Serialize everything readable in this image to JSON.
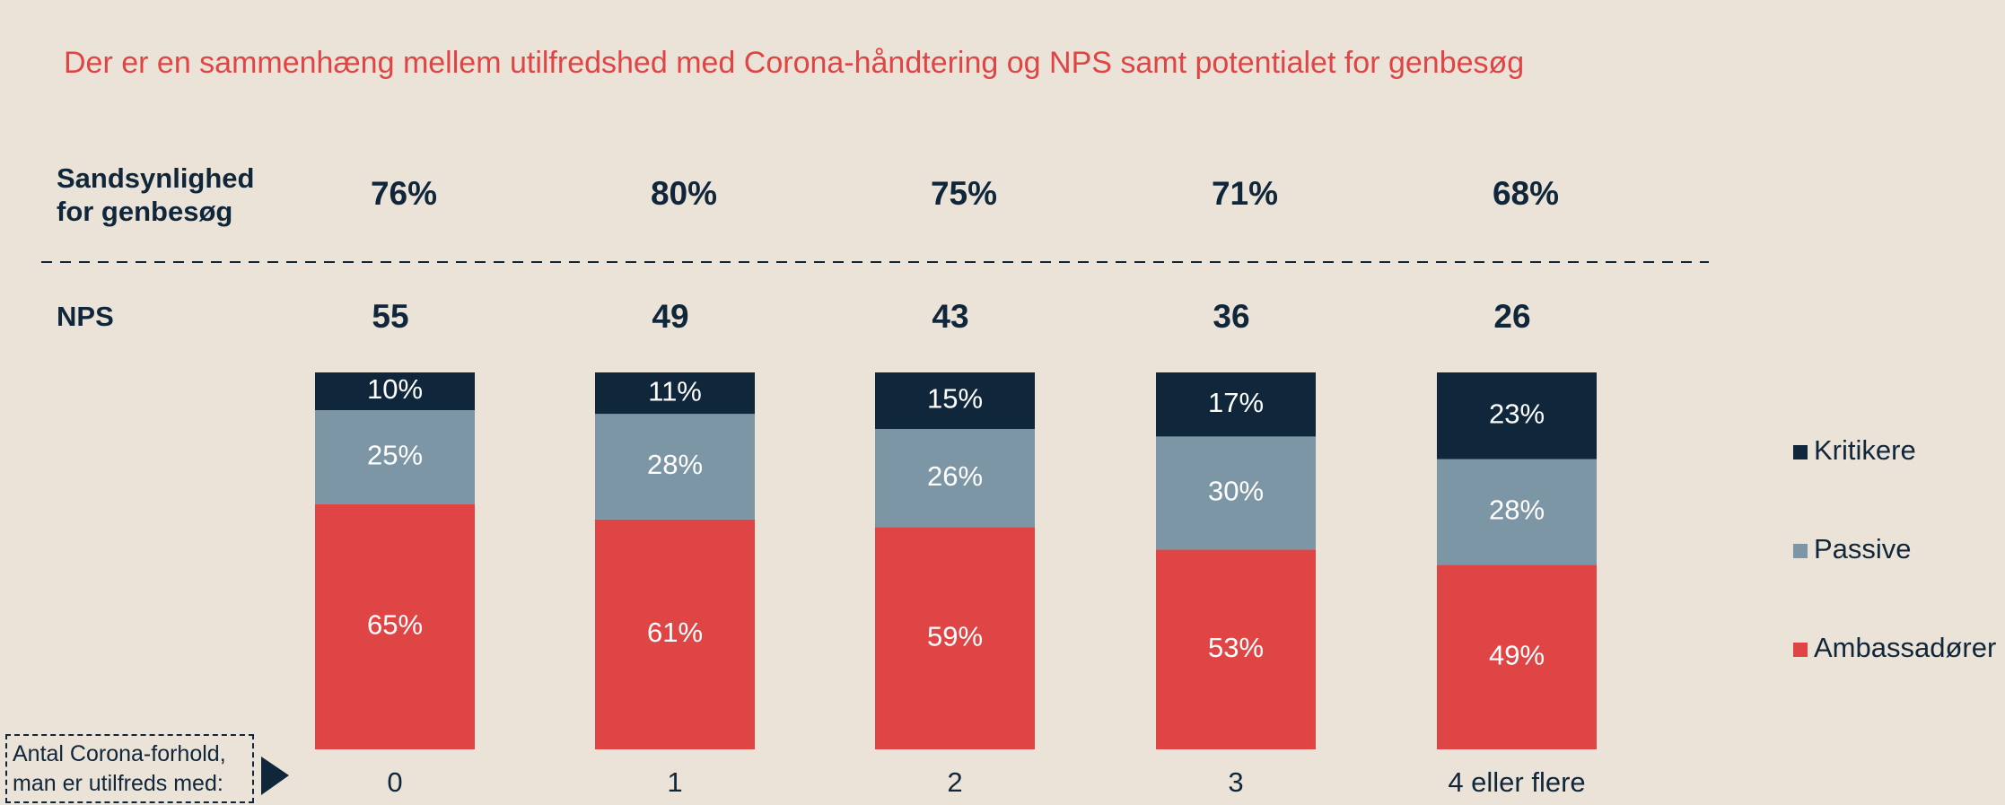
{
  "chart_data": {
    "type": "stacked_bar",
    "title": "Der er en sammenhæng mellem utilfredshed med Corona-håndtering og NPS samt potentialet for genbesøg",
    "xlabel": "Antal Corona-forhold, man er utilfreds med:",
    "categories": [
      "0",
      "1",
      "2",
      "3",
      "4 eller flere"
    ],
    "ylim": [
      0,
      100
    ],
    "series": [
      {
        "name": "Ambassadører",
        "color": "#e04546",
        "values": [
          65,
          61,
          59,
          53,
          49
        ],
        "value_labels": [
          "65%",
          "61%",
          "59%",
          "53%",
          "49%"
        ]
      },
      {
        "name": "Passive",
        "color": "#7d96a5",
        "values": [
          25,
          28,
          26,
          30,
          28
        ],
        "value_labels": [
          "25%",
          "28%",
          "26%",
          "30%",
          "28%"
        ]
      },
      {
        "name": "Kritikere",
        "color": "#10263b",
        "values": [
          10,
          11,
          15,
          17,
          23
        ],
        "value_labels": [
          "10%",
          "11%",
          "15%",
          "17%",
          "23%"
        ]
      }
    ],
    "revisit": {
      "label": "Sandsynlighed for genbesøg",
      "values": [
        76,
        80,
        75,
        71,
        68
      ],
      "value_labels": [
        "76%",
        "80%",
        "75%",
        "71%",
        "68%"
      ]
    },
    "nps": {
      "label": "NPS",
      "values": [
        55,
        49,
        43,
        36,
        26
      ]
    }
  }
}
